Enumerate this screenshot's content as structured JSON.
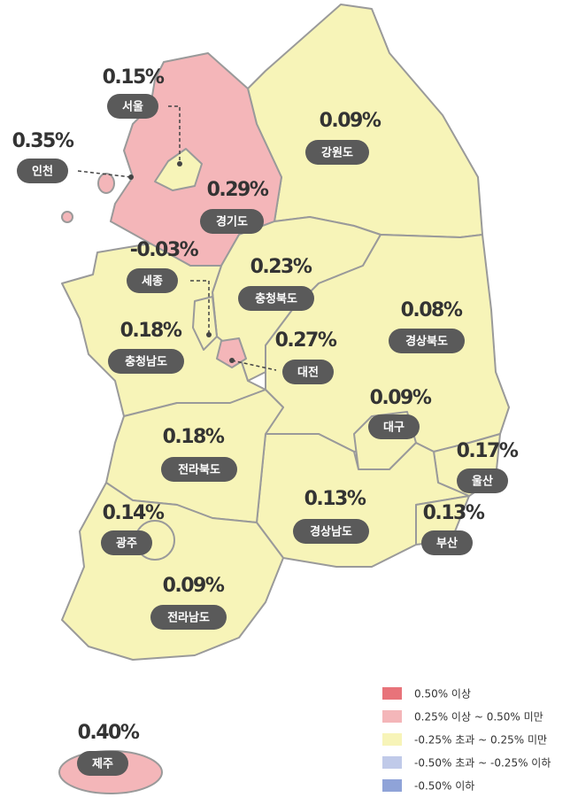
{
  "regions": [
    {
      "name": "서울",
      "value": "0.15%",
      "color": "#f7f4b8"
    },
    {
      "name": "인천",
      "value": "0.35%",
      "color": "#f4b6b9"
    },
    {
      "name": "경기도",
      "value": "0.29%",
      "color": "#f4b6b9"
    },
    {
      "name": "강원도",
      "value": "0.09%",
      "color": "#f7f4b8"
    },
    {
      "name": "세종",
      "value": "-0.03%",
      "color": "#f7f4b8"
    },
    {
      "name": "충청북도",
      "value": "0.23%",
      "color": "#f7f4b8"
    },
    {
      "name": "경상북도",
      "value": "0.08%",
      "color": "#f7f4b8"
    },
    {
      "name": "충청남도",
      "value": "0.18%",
      "color": "#f7f4b8"
    },
    {
      "name": "대전",
      "value": "0.27%",
      "color": "#f4b6b9"
    },
    {
      "name": "대구",
      "value": "0.09%",
      "color": "#f7f4b8"
    },
    {
      "name": "전라북도",
      "value": "0.18%",
      "color": "#f7f4b8"
    },
    {
      "name": "울산",
      "value": "0.17%",
      "color": "#f7f4b8"
    },
    {
      "name": "광주",
      "value": "0.14%",
      "color": "#f7f4b8"
    },
    {
      "name": "경상남도",
      "value": "0.13%",
      "color": "#f7f4b8"
    },
    {
      "name": "부산",
      "value": "0.13%",
      "color": "#f7f4b8"
    },
    {
      "name": "전라남도",
      "value": "0.09%",
      "color": "#f7f4b8"
    },
    {
      "name": "제주",
      "value": "0.40%",
      "color": "#f4b6b9"
    }
  ],
  "legend": [
    {
      "color": "#e8737a",
      "label": "0.50% 이상"
    },
    {
      "color": "#f4b6b9",
      "label": "0.25% 이상 ~ 0.50% 미만"
    },
    {
      "color": "#f7f4b8",
      "label": "-0.25% 초과 ~ 0.25% 미만"
    },
    {
      "color": "#c0cae9",
      "label": "-0.50% 초과 ~ -0.25% 이하"
    },
    {
      "color": "#8fa3d8",
      "label": "-0.50% 이하"
    }
  ]
}
